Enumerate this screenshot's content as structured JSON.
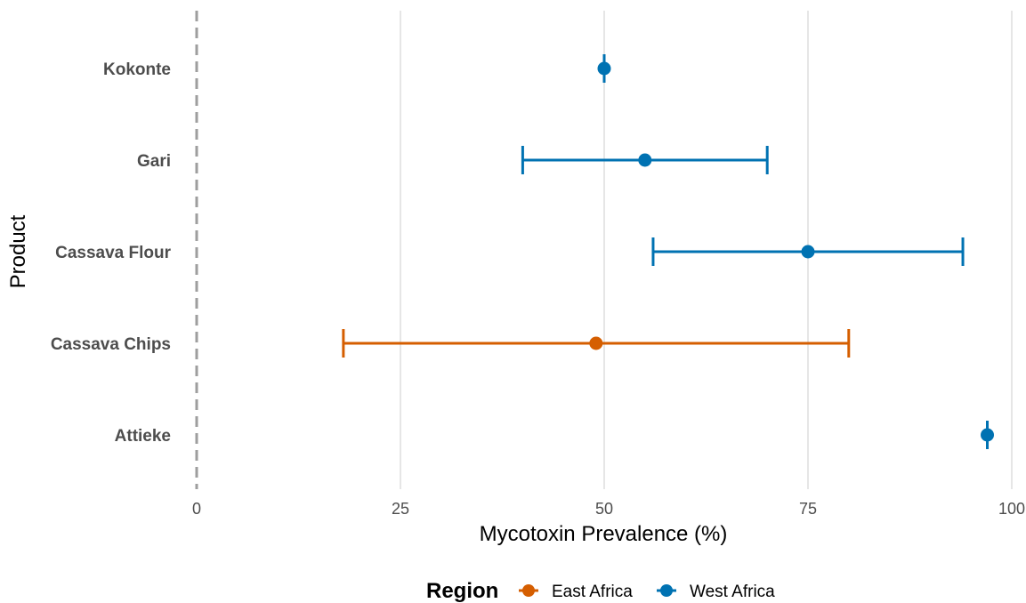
{
  "chart_data": {
    "type": "errorbar",
    "xlabel": "Mycotoxin Prevalence (%)",
    "ylabel": "Product",
    "xlim": [
      0,
      100
    ],
    "xticks": [
      0,
      25,
      50,
      75,
      100
    ],
    "grid": "vertical-major",
    "reference_line": {
      "x": 0,
      "style": "dashed"
    },
    "legend": {
      "title": "Region",
      "placement": "bottom",
      "entries": [
        {
          "name": "East Africa",
          "color": "#D55E00"
        },
        {
          "name": "West Africa",
          "color": "#0072B2"
        }
      ]
    },
    "categories": [
      "Kokonte",
      "Gari",
      "Cassava Flour",
      "Cassava Chips",
      "Attieke"
    ],
    "points": [
      {
        "product": "Kokonte",
        "region": "West Africa",
        "value": 50,
        "low": 50,
        "high": 50
      },
      {
        "product": "Gari",
        "region": "West Africa",
        "value": 55,
        "low": 40,
        "high": 70
      },
      {
        "product": "Cassava Flour",
        "region": "West Africa",
        "value": 75,
        "low": 56,
        "high": 94
      },
      {
        "product": "Cassava Chips",
        "region": "East Africa",
        "value": 49,
        "low": 18,
        "high": 80
      },
      {
        "product": "Attieke",
        "region": "West Africa",
        "value": 97,
        "low": 97,
        "high": 97
      }
    ]
  }
}
